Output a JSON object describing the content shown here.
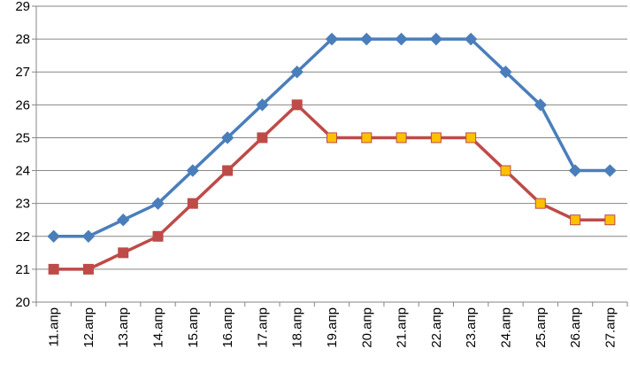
{
  "chart_data": {
    "type": "line",
    "categories": [
      "11.апр",
      "12.апр",
      "13.апр",
      "14.апр",
      "15.апр",
      "16.апр",
      "17.апр",
      "18.апр",
      "19.апр",
      "20.апр",
      "21.апр",
      "22.апр",
      "23.апр",
      "24.апр",
      "25.апр",
      "26.апр",
      "27.апр"
    ],
    "ylim": [
      20,
      29
    ],
    "yticks": [
      20,
      21,
      22,
      23,
      24,
      25,
      26,
      27,
      28,
      29
    ],
    "grid": true,
    "series": [
      {
        "color": "#4a7ebb",
        "marker": "diamond",
        "values": [
          22,
          22,
          22.5,
          23,
          24,
          25,
          26,
          27,
          28,
          28,
          28,
          28,
          28,
          27,
          26,
          24,
          24
        ]
      },
      {
        "color": "#be4b48",
        "marker": "square",
        "marker_fill": "#be4b48",
        "highlight_marker_fill": "#ffc000",
        "highlight_indices": [
          8,
          9,
          10,
          11,
          12,
          13,
          14,
          15,
          16
        ],
        "values": [
          21,
          21,
          21.5,
          22,
          23,
          24,
          25,
          26,
          25,
          25,
          25,
          25,
          25,
          24,
          23,
          22.5,
          22.5
        ]
      }
    ]
  }
}
